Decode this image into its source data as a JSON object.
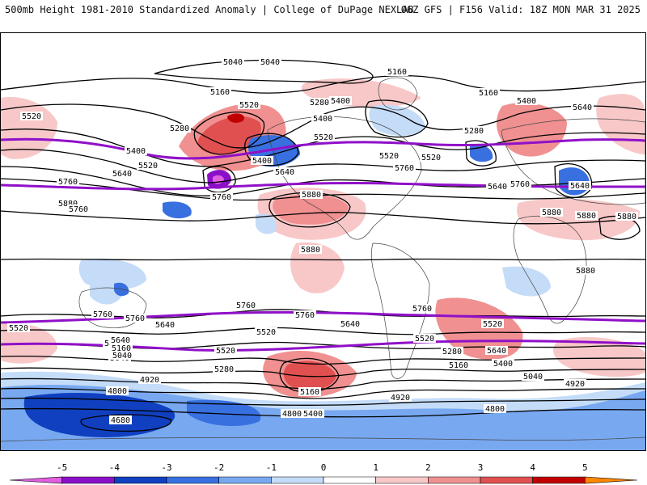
{
  "header": {
    "title_left": "500mb Height 1981-2010 Standardized Anomaly | College of DuPage NEXLAB",
    "title_right": "06Z GFS | F156 Valid: 18Z MON MAR 31 2025"
  },
  "colorbar": {
    "tick_labels": [
      "-5",
      "-4",
      "-3",
      "-2",
      "-1",
      "0",
      "1",
      "2",
      "3",
      "4",
      "5"
    ],
    "colors": [
      "#e060e0",
      "#8a10c8",
      "#1040c0",
      "#3870e0",
      "#78a8f0",
      "#c4dcf8",
      "#ffffff",
      "#f8c8c8",
      "#f09090",
      "#e05050",
      "#c00000",
      "#ff8800"
    ]
  },
  "contour_labels": [
    "5040",
    "5040",
    "5160",
    "5160",
    "5160",
    "5520",
    "5400",
    "5280",
    "5400",
    "5520",
    "5280",
    "5400",
    "5640",
    "5520",
    "5520",
    "5400",
    "5640",
    "5760",
    "5760",
    "5400",
    "5640",
    "5760",
    "5880",
    "5640",
    "5520",
    "5520",
    "5760",
    "5280",
    "5640",
    "5880",
    "5880",
    "5760",
    "5880",
    "5880",
    "5880",
    "5880",
    "5760",
    "5760",
    "5760",
    "5760",
    "5760",
    "5640",
    "5640",
    "5640",
    "5520",
    "5520",
    "5520",
    "5520",
    "5400",
    "5160",
    "5040",
    "5280",
    "4920",
    "5400",
    "5160",
    "5040",
    "4920",
    "4800",
    "4680",
    "4800",
    "4800",
    "5400",
    "5280",
    "5640",
    "5160",
    "5040",
    "4920",
    "5520"
  ]
}
